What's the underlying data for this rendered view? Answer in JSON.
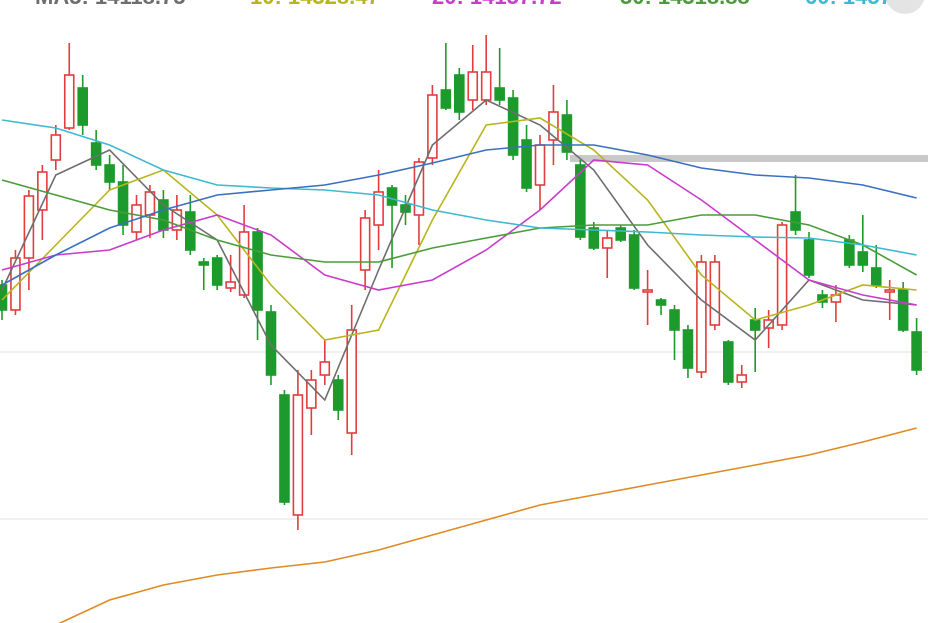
{
  "chart_data": {
    "type": "candlestick",
    "ylim": [
      0,
      623
    ],
    "up_color": "#e23c3c",
    "down_color": "#1c9b2c",
    "open": [
      338,
      313,
      365,
      413,
      463,
      495,
      535,
      480,
      458,
      441,
      391,
      408,
      423,
      393,
      411,
      361,
      365,
      335,
      328,
      391,
      311,
      228,
      108,
      215,
      248,
      243,
      190,
      353,
      398,
      435,
      418,
      408,
      465,
      533,
      548,
      523,
      523,
      535,
      525,
      483,
      438,
      483,
      508,
      458,
      395,
      375,
      395,
      388,
      331,
      323,
      313,
      293,
      251,
      298,
      281,
      241,
      303,
      295,
      298,
      411,
      383,
      328,
      321,
      383,
      371,
      355,
      331,
      333,
      291
    ],
    "close": [
      313,
      365,
      427,
      451,
      488,
      548,
      498,
      458,
      441,
      398,
      418,
      431,
      393,
      413,
      373,
      358,
      338,
      341,
      391,
      313,
      248,
      121,
      228,
      243,
      261,
      213,
      293,
      405,
      431,
      418,
      411,
      461,
      528,
      515,
      511,
      551,
      551,
      523,
      468,
      435,
      478,
      511,
      471,
      386,
      375,
      385,
      383,
      335,
      333,
      318,
      293,
      255,
      361,
      361,
      241,
      248,
      293,
      303,
      398,
      393,
      348,
      321,
      328,
      358,
      358,
      338,
      333,
      293,
      253
    ],
    "high": [
      343,
      373,
      433,
      458,
      498,
      580,
      548,
      493,
      468,
      458,
      428,
      438,
      433,
      428,
      428,
      365,
      368,
      368,
      418,
      395,
      318,
      233,
      253,
      253,
      283,
      248,
      318,
      413,
      453,
      438,
      428,
      465,
      538,
      580,
      555,
      578,
      588,
      575,
      533,
      498,
      488,
      538,
      523,
      463,
      401,
      393,
      398,
      393,
      353,
      325,
      318,
      298,
      368,
      368,
      283,
      258,
      315,
      313,
      401,
      448,
      391,
      333,
      338,
      388,
      408,
      378,
      343,
      341,
      305
    ],
    "low": [
      303,
      308,
      333,
      383,
      453,
      493,
      488,
      453,
      433,
      388,
      383,
      385,
      385,
      383,
      368,
      333,
      333,
      331,
      325,
      283,
      238,
      118,
      93,
      188,
      238,
      203,
      168,
      333,
      373,
      355,
      398,
      378,
      458,
      513,
      503,
      513,
      518,
      518,
      463,
      431,
      413,
      458,
      463,
      383,
      373,
      345,
      381,
      333,
      298,
      308,
      263,
      245,
      245,
      293,
      238,
      235,
      251,
      275,
      293,
      388,
      345,
      315,
      301,
      355,
      351,
      335,
      303,
      291,
      248
    ],
    "series": [
      {
        "name": "MA5: 14118.75",
        "color": "#6e6e6e",
        "x": [
          0,
          4,
          8,
          12,
          16,
          20,
          24,
          28,
          32,
          36,
          40,
          44,
          48,
          52,
          56,
          60,
          64,
          68
        ],
        "values": [
          333,
          448,
          473,
          418,
          383,
          278,
          223,
          353,
          478,
          523,
          498,
          453,
          378,
          323,
          283,
          343,
          323,
          318
        ]
      },
      {
        "name": "10: 14328.47",
        "color": "#b8b41e",
        "x": [
          0,
          4,
          8,
          12,
          16,
          20,
          24,
          28,
          32,
          36,
          40,
          44,
          48,
          52,
          56,
          60,
          64,
          68
        ],
        "values": [
          323,
          378,
          433,
          453,
          408,
          338,
          283,
          293,
          403,
          498,
          505,
          473,
          423,
          348,
          303,
          318,
          338,
          333
        ]
      },
      {
        "name": "20: 14157.72",
        "color": "#c93ccb",
        "x": [
          0,
          4,
          8,
          12,
          16,
          20,
          24,
          28,
          32,
          36,
          40,
          44,
          48,
          52,
          56,
          60,
          64,
          68
        ],
        "values": [
          353,
          368,
          373,
          393,
          408,
          388,
          348,
          333,
          343,
          373,
          413,
          463,
          458,
          423,
          383,
          343,
          328,
          318
        ]
      },
      {
        "name": "30: 14318.88",
        "color": "#4c9b3a",
        "x": [
          0,
          4,
          8,
          12,
          16,
          20,
          24,
          28,
          32,
          36,
          40,
          44,
          48,
          52,
          56,
          60,
          64,
          68
        ],
        "values": [
          443,
          428,
          413,
          403,
          383,
          368,
          361,
          361,
          375,
          385,
          395,
          398,
          398,
          408,
          408,
          398,
          378,
          348
        ]
      },
      {
        "name": "60: 1457",
        "color": "#3fb9d2",
        "x": [
          0,
          4,
          8,
          12,
          16,
          20,
          24,
          28,
          32,
          36,
          40,
          44,
          48,
          52,
          56,
          60,
          64,
          68
        ],
        "values": [
          503,
          495,
          478,
          453,
          438,
          435,
          433,
          428,
          413,
          403,
          395,
          393,
          391,
          388,
          386,
          385,
          378,
          368
        ]
      },
      {
        "color": "#3a6fc2",
        "x": [
          0,
          4,
          8,
          12,
          16,
          20,
          24,
          28,
          32,
          36,
          40,
          44,
          48,
          52,
          56,
          60,
          64,
          68
        ],
        "values": [
          338,
          368,
          395,
          413,
          428,
          433,
          438,
          448,
          460,
          473,
          478,
          478,
          468,
          455,
          448,
          445,
          438,
          425
        ]
      },
      {
        "color": "#e08a22",
        "x": [
          4,
          8,
          12,
          16,
          20,
          24,
          28,
          32,
          36,
          40,
          44,
          48,
          52,
          56,
          60,
          64,
          68
        ],
        "values": [
          -2,
          23,
          38,
          48,
          55,
          61,
          73,
          88,
          103,
          118,
          128,
          138,
          148,
          158,
          168,
          181,
          195
        ]
      }
    ]
  }
}
